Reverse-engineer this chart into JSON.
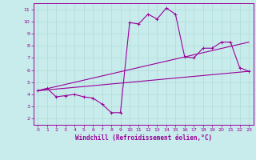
{
  "xlabel": "Windchill (Refroidissement éolien,°C)",
  "ylabel": "",
  "xlim": [
    -0.5,
    23.5
  ],
  "ylim": [
    1.5,
    11.5
  ],
  "yticks": [
    2,
    3,
    4,
    5,
    6,
    7,
    8,
    9,
    10,
    11
  ],
  "xticks": [
    0,
    1,
    2,
    3,
    4,
    5,
    6,
    7,
    8,
    9,
    10,
    11,
    12,
    13,
    14,
    15,
    16,
    17,
    18,
    19,
    20,
    21,
    22,
    23
  ],
  "bg_color": "#c8ecec",
  "line_color": "#990099",
  "grid_color": "#b0d8d8",
  "line1_x": [
    0,
    1,
    2,
    3,
    4,
    5,
    6,
    7,
    8,
    9,
    10,
    11,
    12,
    13,
    14,
    15,
    16,
    17,
    18,
    19,
    20,
    21,
    22,
    23
  ],
  "line1_y": [
    4.3,
    4.5,
    3.8,
    3.9,
    4.0,
    3.8,
    3.7,
    3.2,
    2.5,
    2.5,
    9.9,
    9.8,
    10.6,
    10.2,
    11.1,
    10.6,
    7.1,
    7.0,
    7.8,
    7.8,
    8.3,
    8.3,
    6.2,
    5.9
  ],
  "line2_x": [
    0,
    23
  ],
  "line2_y": [
    4.3,
    5.9
  ],
  "line3_x": [
    0,
    23
  ],
  "line3_y": [
    4.3,
    8.3
  ],
  "marker_size": 2.5,
  "linewidth": 0.8
}
